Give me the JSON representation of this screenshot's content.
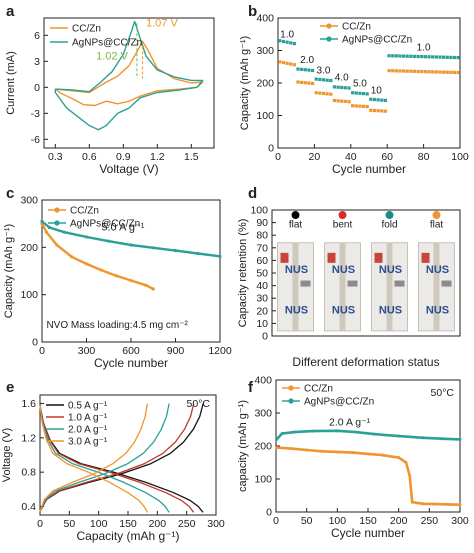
{
  "figure": {
    "panel_labels": [
      "a",
      "b",
      "c",
      "d",
      "e",
      "f"
    ],
    "colors": {
      "orange": "#f0952e",
      "teal": "#2aa198",
      "green": "#7ab648",
      "axis": "#222222"
    }
  },
  "chart_data": [
    {
      "id": "a",
      "type": "line",
      "xlabel": "Voltage (V)",
      "ylabel": "Current (mA)",
      "xlim": [
        0.2,
        1.7
      ],
      "ylim": [
        -7,
        8
      ],
      "xticks": [
        "0.3",
        "0.6",
        "0.9",
        "1.2",
        "1.5"
      ],
      "yticks": [
        "-6",
        "-3",
        "0",
        "3",
        "6"
      ],
      "legend": "top-left",
      "annotations": [
        "1.07 V",
        "1.02 V"
      ],
      "series": [
        {
          "name": "CC/Zn",
          "color": "#f0952e",
          "points": [
            [
              0.3,
              -0.2
            ],
            [
              0.45,
              -0.4
            ],
            [
              0.6,
              -0.6
            ],
            [
              0.75,
              0.6
            ],
            [
              0.85,
              1.3
            ],
            [
              0.95,
              2.5
            ],
            [
              1.02,
              4.1
            ],
            [
              1.07,
              5.3
            ],
            [
              1.12,
              4.2
            ],
            [
              1.2,
              2.2
            ],
            [
              1.35,
              1.0
            ],
            [
              1.5,
              0.5
            ],
            [
              1.6,
              0.6
            ],
            [
              1.55,
              0.0
            ],
            [
              1.4,
              -0.2
            ],
            [
              1.2,
              -0.4
            ],
            [
              1.05,
              -1.0
            ],
            [
              0.95,
              -1.6
            ],
            [
              0.85,
              -1.9
            ],
            [
              0.75,
              -1.6
            ],
            [
              0.65,
              -2.1
            ],
            [
              0.55,
              -2.0
            ],
            [
              0.45,
              -1.3
            ],
            [
              0.35,
              -0.7
            ],
            [
              0.3,
              -0.2
            ]
          ]
        },
        {
          "name": "AgNPs@CC/Zn",
          "color": "#2aa198",
          "points": [
            [
              0.3,
              -0.2
            ],
            [
              0.45,
              -0.3
            ],
            [
              0.6,
              -0.5
            ],
            [
              0.7,
              0.6
            ],
            [
              0.8,
              1.8
            ],
            [
              0.9,
              3.8
            ],
            [
              0.97,
              6.4
            ],
            [
              1.0,
              7.6
            ],
            [
              1.04,
              6.0
            ],
            [
              1.1,
              3.6
            ],
            [
              1.2,
              2.0
            ],
            [
              1.35,
              1.2
            ],
            [
              1.5,
              0.8
            ],
            [
              1.6,
              0.8
            ],
            [
              1.55,
              0.0
            ],
            [
              1.4,
              -0.3
            ],
            [
              1.2,
              -0.6
            ],
            [
              1.05,
              -1.2
            ],
            [
              0.95,
              -2.4
            ],
            [
              0.85,
              -3.0
            ],
            [
              0.75,
              -4.4
            ],
            [
              0.68,
              -4.9
            ],
            [
              0.6,
              -4.4
            ],
            [
              0.5,
              -3.4
            ],
            [
              0.4,
              -2.4
            ],
            [
              0.3,
              -0.6
            ],
            [
              0.3,
              -0.2
            ]
          ]
        }
      ]
    },
    {
      "id": "b",
      "type": "line",
      "xlabel": "Cycle number",
      "ylabel": "Capacity (mAh g⁻¹)",
      "xlim": [
        0,
        100
      ],
      "ylim": [
        0,
        400
      ],
      "xticks": [
        "0",
        "20",
        "40",
        "60",
        "80",
        "100"
      ],
      "yticks": [
        "0",
        "100",
        "200",
        "300",
        "400"
      ],
      "legend": "top-right",
      "rate_labels": [
        "1.0",
        "2.0",
        "3.0",
        "4.0",
        "5.0",
        "10",
        "1.0"
      ],
      "series": [
        {
          "name": "CC/Zn",
          "color": "#f0952e",
          "segments": [
            {
              "from": 1,
              "to": 10,
              "start": 265,
              "end": 255
            },
            {
              "from": 11,
              "to": 20,
              "start": 203,
              "end": 198
            },
            {
              "from": 21,
              "to": 30,
              "start": 170,
              "end": 165
            },
            {
              "from": 31,
              "to": 40,
              "start": 146,
              "end": 142
            },
            {
              "from": 41,
              "to": 50,
              "start": 130,
              "end": 127
            },
            {
              "from": 51,
              "to": 60,
              "start": 116,
              "end": 113
            },
            {
              "from": 61,
              "to": 100,
              "start": 238,
              "end": 232
            }
          ]
        },
        {
          "name": "AgNPs@CC/Zn",
          "color": "#2aa198",
          "segments": [
            {
              "from": 1,
              "to": 10,
              "start": 330,
              "end": 320
            },
            {
              "from": 11,
              "to": 20,
              "start": 243,
              "end": 238
            },
            {
              "from": 21,
              "to": 30,
              "start": 212,
              "end": 207
            },
            {
              "from": 31,
              "to": 40,
              "start": 188,
              "end": 184
            },
            {
              "from": 41,
              "to": 50,
              "start": 170,
              "end": 166
            },
            {
              "from": 51,
              "to": 60,
              "start": 150,
              "end": 146
            },
            {
              "from": 61,
              "to": 100,
              "start": 284,
              "end": 278
            }
          ]
        }
      ]
    },
    {
      "id": "c",
      "type": "line",
      "xlabel": "Cycle number",
      "ylabel": "Capacity (mAh g⁻¹)",
      "xlim": [
        0,
        1200
      ],
      "ylim": [
        0,
        300
      ],
      "xticks": [
        "0",
        "300",
        "600",
        "900",
        "1200"
      ],
      "yticks": [
        "0",
        "100",
        "200",
        "300"
      ],
      "legend": "top-left",
      "annotations": [
        "5.0 A g⁻¹",
        "NVO Mass loading:4.5 mg cm⁻²"
      ],
      "series": [
        {
          "name": "CC/Zn",
          "color": "#f0952e",
          "points": [
            [
              0,
              250
            ],
            [
              30,
              232
            ],
            [
              100,
              205
            ],
            [
              200,
              180
            ],
            [
              300,
              165
            ],
            [
              400,
              152
            ],
            [
              500,
              140
            ],
            [
              600,
              130
            ],
            [
              700,
              120
            ],
            [
              750,
              112
            ]
          ]
        },
        {
          "name": "AgNPs@CC/Zn",
          "color": "#2aa198",
          "points": [
            [
              0,
              255
            ],
            [
              50,
              242
            ],
            [
              150,
              232
            ],
            [
              300,
              222
            ],
            [
              450,
              213
            ],
            [
              600,
              205
            ],
            [
              750,
              199
            ],
            [
              900,
              193
            ],
            [
              1050,
              187
            ],
            [
              1200,
              181
            ]
          ]
        }
      ]
    },
    {
      "id": "d",
      "type": "scatter",
      "xlabel": "Different deformation status",
      "ylabel": "Capacity retention (%)",
      "ylim": [
        0,
        100
      ],
      "yticks": [
        "0",
        "10",
        "20",
        "30",
        "40",
        "50",
        "60",
        "70",
        "80",
        "90",
        "100"
      ],
      "categories": [
        "flat",
        "bent",
        "fold",
        "flat"
      ],
      "marker_colors": [
        "#000000",
        "#e12828",
        "#1a8a8a",
        "#f0952e"
      ],
      "photo_text": "NUS"
    },
    {
      "id": "e",
      "type": "line",
      "xlabel": "Capacity (mAh g⁻¹)",
      "ylabel": "Voltage (V)",
      "xlim": [
        0,
        300
      ],
      "ylim": [
        0.3,
        1.7
      ],
      "xticks": [
        "0",
        "50",
        "100",
        "150",
        "200",
        "250",
        "300"
      ],
      "yticks": [
        "0.4",
        "0.8",
        "1.2",
        "1.6"
      ],
      "legend": "top-left",
      "annotations": [
        "50°C"
      ],
      "series": [
        {
          "name": "0.5 A g⁻¹",
          "color": "#141414",
          "capacity": 278
        },
        {
          "name": "1.0 A g⁻¹",
          "color": "#c0392b",
          "capacity": 262
        },
        {
          "name": "2.0 A g⁻¹",
          "color": "#2aa198",
          "capacity": 220
        },
        {
          "name": "3.0 A g⁻¹",
          "color": "#f0952e",
          "capacity": 183
        }
      ]
    },
    {
      "id": "f",
      "type": "line",
      "xlabel": "Cycle number",
      "ylabel": "capacity (mAh g⁻¹)",
      "xlim": [
        0,
        300
      ],
      "ylim": [
        0,
        400
      ],
      "xticks": [
        "0",
        "50",
        "100",
        "150",
        "200",
        "250",
        "300"
      ],
      "yticks": [
        "0",
        "100",
        "200",
        "300",
        "400"
      ],
      "legend": "top-left",
      "annotations": [
        "50°C",
        "2.0 A g⁻¹"
      ],
      "series": [
        {
          "name": "CC/Zn",
          "color": "#f0952e",
          "points": [
            [
              1,
              195
            ],
            [
              25,
              192
            ],
            [
              50,
              188
            ],
            [
              75,
              184
            ],
            [
              100,
              182
            ],
            [
              125,
              180
            ],
            [
              150,
              176
            ],
            [
              175,
              172
            ],
            [
              200,
              165
            ],
            [
              212,
              150
            ],
            [
              218,
              110
            ],
            [
              222,
              30
            ],
            [
              240,
              25
            ],
            [
              260,
              24
            ],
            [
              280,
              23
            ],
            [
              300,
              22
            ]
          ]
        },
        {
          "name": "AgNPs@CC/Zn",
          "color": "#2aa198",
          "points": [
            [
              1,
              220
            ],
            [
              10,
              238
            ],
            [
              30,
              242
            ],
            [
              60,
              245
            ],
            [
              100,
              246
            ],
            [
              130,
              242
            ],
            [
              160,
              236
            ],
            [
              200,
              230
            ],
            [
              240,
              225
            ],
            [
              270,
              222
            ],
            [
              300,
              220
            ]
          ]
        }
      ]
    }
  ]
}
